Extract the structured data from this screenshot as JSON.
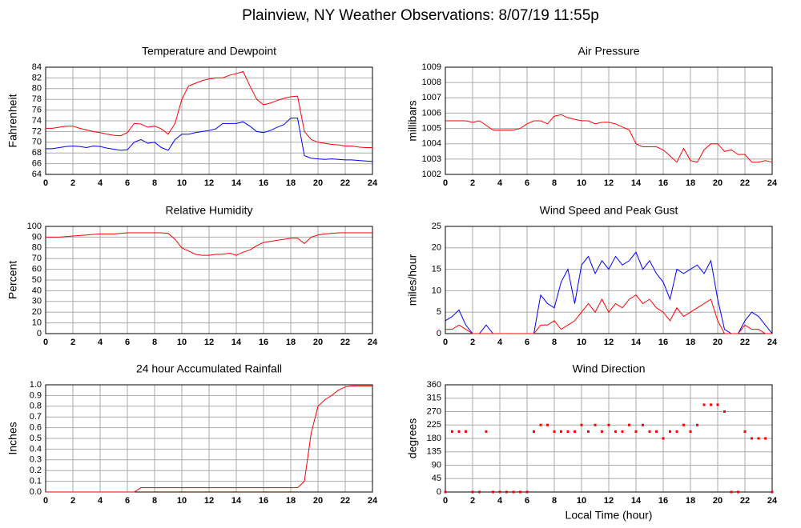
{
  "title": "Plainview, NY Weather Observations: 8/07/19 11:55p",
  "chart_data": [
    {
      "type": "line",
      "title": "Temperature and Dewpoint",
      "ylabel": "Fahrenheit",
      "x": [
        0,
        0.5,
        1,
        1.5,
        2,
        2.5,
        3,
        3.5,
        4,
        4.5,
        5,
        5.5,
        6,
        6.5,
        7,
        7.5,
        8,
        8.5,
        9,
        9.5,
        10,
        10.5,
        11,
        11.5,
        12,
        12.5,
        13,
        13.5,
        14,
        14.5,
        15,
        15.5,
        16,
        16.5,
        17,
        17.5,
        18,
        18.5,
        19,
        19.5,
        20,
        20.5,
        21,
        21.5,
        22,
        22.5,
        23,
        23.5,
        24
      ],
      "series": [
        {
          "color": "#ff0000",
          "values": [
            72.6,
            72.6,
            72.8,
            73,
            73,
            72.6,
            72.3,
            72,
            71.8,
            71.5,
            71.3,
            71.2,
            71.8,
            73.5,
            73.4,
            72.8,
            73,
            72.5,
            71.5,
            73.5,
            78,
            80.5,
            81,
            81.5,
            81.8,
            82,
            82,
            82.5,
            82.8,
            83.2,
            80.5,
            78,
            77,
            77.3,
            77.8,
            78.2,
            78.5,
            78.6,
            72,
            70.5,
            70,
            69.8,
            69.6,
            69.5,
            69.3,
            69.3,
            69.1,
            69,
            69
          ]
        },
        {
          "color": "#0000ff",
          "values": [
            68.8,
            68.8,
            69,
            69.2,
            69.3,
            69.2,
            69,
            69.3,
            69.2,
            68.9,
            68.7,
            68.5,
            68.6,
            70,
            70.5,
            69.8,
            70,
            69,
            68.5,
            70.5,
            71.5,
            71.5,
            71.8,
            72,
            72.2,
            72.5,
            73.5,
            73.5,
            73.5,
            73.8,
            73,
            72,
            71.8,
            72.2,
            72.8,
            73.3,
            74.5,
            74.5,
            67.5,
            67,
            66.9,
            66.8,
            66.9,
            66.8,
            66.7,
            66.7,
            66.6,
            66.5,
            66.4
          ]
        }
      ],
      "xlim": [
        0,
        24
      ],
      "xticks": [
        0,
        2,
        4,
        6,
        8,
        10,
        12,
        14,
        16,
        18,
        20,
        22,
        24
      ],
      "ylim": [
        64,
        84
      ],
      "yticks": [
        64,
        66,
        68,
        70,
        72,
        74,
        76,
        78,
        80,
        82,
        84
      ],
      "grid": true
    },
    {
      "type": "line",
      "title": "Air Pressure",
      "ylabel": "millibars",
      "x": [
        0,
        0.5,
        1,
        1.5,
        2,
        2.5,
        3,
        3.5,
        4,
        4.5,
        5,
        5.5,
        6,
        6.5,
        7,
        7.5,
        8,
        8.5,
        9,
        9.5,
        10,
        10.5,
        11,
        11.5,
        12,
        12.5,
        13,
        13.5,
        14,
        14.5,
        15,
        15.5,
        16,
        16.5,
        17,
        17.5,
        18,
        18.5,
        19,
        19.5,
        20,
        20.5,
        21,
        21.5,
        22,
        22.5,
        23,
        23.5,
        24
      ],
      "series": [
        {
          "color": "#ff0000",
          "values": [
            1005.5,
            1005.5,
            1005.5,
            1005.5,
            1005.4,
            1005.5,
            1005.2,
            1004.9,
            1004.9,
            1004.9,
            1004.9,
            1005,
            1005.3,
            1005.5,
            1005.5,
            1005.3,
            1005.8,
            1005.9,
            1005.7,
            1005.6,
            1005.5,
            1005.5,
            1005.3,
            1005.4,
            1005.4,
            1005.3,
            1005.1,
            1004.9,
            1004,
            1003.8,
            1003.8,
            1003.8,
            1003.6,
            1003.2,
            1002.8,
            1003.7,
            1002.9,
            1002.8,
            1003.6,
            1004,
            1004,
            1003.5,
            1003.6,
            1003.3,
            1003.3,
            1002.8,
            1002.8,
            1002.9,
            1002.8
          ]
        }
      ],
      "xlim": [
        0,
        24
      ],
      "xticks": [
        0,
        2,
        4,
        6,
        8,
        10,
        12,
        14,
        16,
        18,
        20,
        22,
        24
      ],
      "ylim": [
        1002,
        1009
      ],
      "yticks": [
        1002,
        1003,
        1004,
        1005,
        1006,
        1007,
        1008,
        1009
      ],
      "grid": true
    },
    {
      "type": "line",
      "title": "Relative Humidity",
      "ylabel": "Percent",
      "x": [
        0,
        0.5,
        1,
        1.5,
        2,
        2.5,
        3,
        3.5,
        4,
        4.5,
        5,
        5.5,
        6,
        6.5,
        7,
        7.5,
        8,
        8.5,
        9,
        9.5,
        10,
        10.5,
        11,
        11.5,
        12,
        12.5,
        13,
        13.5,
        14,
        14.5,
        15,
        15.5,
        16,
        16.5,
        17,
        17.5,
        18,
        18.5,
        19,
        19.5,
        20,
        20.5,
        21,
        21.5,
        22,
        22.5,
        23,
        23.5,
        24
      ],
      "series": [
        {
          "color": "#ff0000",
          "values": [
            90,
            90,
            90,
            90.5,
            91,
            91.5,
            92,
            92.5,
            93,
            93,
            93,
            93.5,
            94,
            94,
            94,
            94,
            94,
            94,
            93.5,
            88,
            80,
            77,
            74,
            73,
            73,
            74,
            74,
            75,
            73,
            76,
            78,
            82,
            85,
            86,
            87,
            88,
            89,
            89,
            84,
            90,
            92,
            93,
            93.5,
            94,
            94,
            94,
            94,
            94,
            94
          ]
        }
      ],
      "xlim": [
        0,
        24
      ],
      "xticks": [
        0,
        2,
        4,
        6,
        8,
        10,
        12,
        14,
        16,
        18,
        20,
        22,
        24
      ],
      "ylim": [
        0,
        100
      ],
      "yticks": [
        0,
        10,
        20,
        30,
        40,
        50,
        60,
        70,
        80,
        90,
        100
      ],
      "grid": true
    },
    {
      "type": "line",
      "title": "Wind Speed and Peak Gust",
      "ylabel": "miles/hour",
      "x": [
        0,
        0.5,
        1,
        1.5,
        2,
        2.5,
        3,
        3.5,
        4,
        4.5,
        5,
        5.5,
        6,
        6.5,
        7,
        7.5,
        8,
        8.5,
        9,
        9.5,
        10,
        10.5,
        11,
        11.5,
        12,
        12.5,
        13,
        13.5,
        14,
        14.5,
        15,
        15.5,
        16,
        16.5,
        17,
        17.5,
        18,
        18.5,
        19,
        19.5,
        20,
        20.5,
        21,
        21.5,
        22,
        22.5,
        23,
        23.5,
        24
      ],
      "series": [
        {
          "color": "#0000ff",
          "values": [
            3,
            4,
            5.5,
            2,
            0,
            0,
            2,
            0,
            0,
            0,
            0,
            0,
            0,
            0,
            9,
            7,
            6,
            12,
            15,
            7,
            16,
            18,
            14,
            17,
            15,
            18,
            16,
            17,
            19,
            15,
            17,
            14,
            12,
            8,
            15,
            14,
            15,
            16,
            14,
            17,
            8,
            1,
            0,
            0,
            3,
            5,
            4,
            2,
            0
          ]
        },
        {
          "color": "#ff0000",
          "values": [
            1,
            1,
            2,
            1,
            0,
            0,
            0,
            0,
            0,
            0,
            0,
            0,
            0,
            0,
            2,
            2,
            3,
            1,
            2,
            3,
            5,
            7,
            5,
            8,
            5,
            7,
            6,
            8,
            9,
            7,
            8,
            6,
            5,
            3,
            6,
            4,
            5,
            6,
            7,
            8,
            3,
            0,
            0,
            0,
            2,
            1,
            1,
            0,
            0
          ]
        }
      ],
      "xlim": [
        0,
        24
      ],
      "xticks": [
        0,
        2,
        4,
        6,
        8,
        10,
        12,
        14,
        16,
        18,
        20,
        22,
        24
      ],
      "ylim": [
        0,
        25
      ],
      "yticks": [
        0,
        5,
        10,
        15,
        20,
        25
      ],
      "grid": true
    },
    {
      "type": "line",
      "title": "24 hour Accumulated Rainfall",
      "ylabel": "Inches",
      "x": [
        0,
        0.5,
        1,
        1.5,
        2,
        2.5,
        3,
        3.5,
        4,
        4.5,
        5,
        5.5,
        6,
        6.5,
        7,
        7.5,
        8,
        8.5,
        9,
        9.5,
        10,
        10.5,
        11,
        11.5,
        12,
        12.5,
        13,
        13.5,
        14,
        14.5,
        15,
        15.5,
        16,
        16.5,
        17,
        17.5,
        18,
        18.5,
        19,
        19.5,
        20,
        20.5,
        21,
        21.5,
        22,
        22.5,
        23,
        23.5,
        24
      ],
      "series": [
        {
          "color": "#ff0000",
          "values": [
            0,
            0,
            0,
            0,
            0,
            0,
            0,
            0,
            0,
            0,
            0,
            0,
            0,
            0,
            0.04,
            0.04,
            0.04,
            0.04,
            0.04,
            0.04,
            0.04,
            0.04,
            0.04,
            0.04,
            0.04,
            0.04,
            0.04,
            0.04,
            0.04,
            0.04,
            0.04,
            0.04,
            0.04,
            0.04,
            0.04,
            0.04,
            0.04,
            0.04,
            0.1,
            0.55,
            0.8,
            0.86,
            0.9,
            0.95,
            0.98,
            0.99,
            0.99,
            0.99,
            0.99
          ]
        }
      ],
      "xlim": [
        0,
        24
      ],
      "xticks": [
        0,
        2,
        4,
        6,
        8,
        10,
        12,
        14,
        16,
        18,
        20,
        22,
        24
      ],
      "ylim": [
        0,
        1
      ],
      "yticks": [
        {
          "value": 0,
          "label": "0.0"
        },
        0.1,
        0.2,
        0.3,
        0.4,
        0.5,
        0.6,
        0.7,
        0.8,
        0.9,
        {
          "value": 1,
          "label": "1.0"
        }
      ],
      "grid": true
    },
    {
      "type": "scatter",
      "title": "Wind Direction",
      "ylabel": "degrees",
      "xlabel": "Local Time (hour)",
      "x": [
        0,
        0.5,
        1,
        1.5,
        2,
        2.5,
        3,
        3.5,
        4,
        4.5,
        5,
        5.5,
        6,
        6.5,
        7,
        7.5,
        8,
        8.5,
        9,
        9.5,
        10,
        10.5,
        11,
        11.5,
        12,
        12.5,
        13,
        13.5,
        14,
        14.5,
        15,
        15.5,
        16,
        16.5,
        17,
        17.5,
        18,
        18.5,
        19,
        19.5,
        20,
        20.5,
        21,
        21.5,
        22,
        22.5,
        23,
        23.5,
        24
      ],
      "series": [
        {
          "color": "#ff0000",
          "values": [
            0,
            203,
            203,
            203,
            0,
            0,
            203,
            0,
            0,
            0,
            0,
            0,
            0,
            203,
            225,
            225,
            203,
            203,
            203,
            203,
            225,
            203,
            225,
            203,
            225,
            203,
            203,
            225,
            203,
            225,
            203,
            203,
            180,
            203,
            203,
            225,
            203,
            225,
            293,
            293,
            293,
            270,
            0,
            0,
            203,
            180,
            180,
            180,
            0
          ]
        }
      ],
      "xlim": [
        0,
        24
      ],
      "xticks": [
        0,
        2,
        4,
        6,
        8,
        10,
        12,
        14,
        16,
        18,
        20,
        22,
        24
      ],
      "ylim": [
        0,
        360
      ],
      "yticks": [
        0,
        45,
        90,
        135,
        180,
        225,
        270,
        315,
        360
      ],
      "grid": true
    }
  ]
}
